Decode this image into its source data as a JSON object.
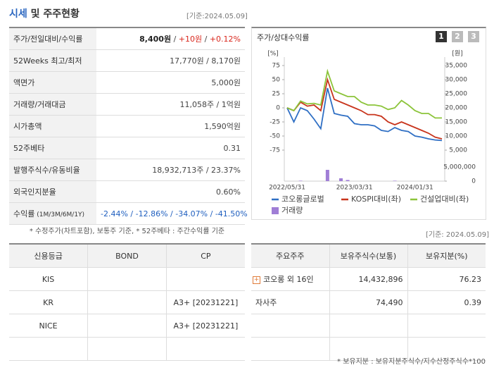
{
  "header": {
    "title": [
      "시세",
      " 및 주주현황"
    ],
    "date": "[기준:2024.05.09]"
  },
  "summary": {
    "rows": [
      {
        "label": [
          "주가/전일대비/수익률"
        ],
        "value": [
          {
            "text": "8,400원",
            "color": "#222",
            "bold": true
          },
          " / ",
          {
            "text": "+10원",
            "color": "#d9261c"
          },
          " / ",
          {
            "text": "+0.12%",
            "color": "#d9261c"
          }
        ]
      },
      {
        "label": [
          "52Weeks 최고/최저"
        ],
        "value": [
          "17,770원 / 8,170원"
        ]
      },
      {
        "label": [
          "액면가"
        ],
        "value": [
          "5,000원"
        ]
      },
      {
        "label": [
          "거래량/거래대금"
        ],
        "value": [
          "11,058주 / 1억원"
        ]
      },
      {
        "label": [
          "시가총액"
        ],
        "value": [
          "1,590억원"
        ]
      },
      {
        "label": [
          "52주베타"
        ],
        "value": [
          "0.31"
        ]
      },
      {
        "label": [
          "발행주식수/유동비율"
        ],
        "value": [
          "18,932,713주 / 23.37%"
        ]
      },
      {
        "label": [
          "외국인지분율"
        ],
        "value": [
          "0.60%"
        ]
      },
      {
        "label": [
          "수익률",
          " (1M/3M/6M/1Y)"
        ],
        "value": [
          {
            "text": "-2.44% / -12.86% / -34.07% / -41.50%",
            "color": "#1f5fbf"
          }
        ]
      }
    ]
  },
  "note": "* 수정주가(차트포함), 보통주 기준, * 52주베타 : 주간수익률 기준",
  "chart_panel": {
    "title": "주가/상대수익률",
    "tabs": [
      "1",
      "2",
      "3"
    ],
    "chart": {
      "type": "line",
      "y_unit": "[%]",
      "y2_unit": "[원]",
      "categories": [
        "2022/05/31",
        null,
        null,
        null,
        null,
        null,
        null,
        null,
        null,
        null,
        "2023/03/31",
        null,
        null,
        null,
        null,
        null,
        null,
        null,
        null,
        "2024/01/31",
        null,
        null,
        null,
        null
      ],
      "series": [
        {
          "name": "코오롱글로벌",
          "color": "#2f6fc4",
          "values": [
            0,
            -25,
            0,
            -5,
            -20,
            -37,
            35,
            -10,
            -13,
            -15,
            -28,
            -30,
            -30,
            -32,
            -40,
            -42,
            -35,
            -40,
            -42,
            -50,
            -52,
            -55,
            -57,
            -58
          ]
        },
        {
          "name": "KOSPI대비(좌)",
          "color": "#c8341c",
          "values": [
            0,
            -5,
            10,
            3,
            5,
            -5,
            50,
            15,
            10,
            5,
            0,
            -5,
            -12,
            -12,
            -15,
            -25,
            -30,
            -25,
            -30,
            -35,
            -40,
            -45,
            -52,
            -55
          ]
        },
        {
          "name": "건설업대비(좌)",
          "color": "#8cc43a",
          "values": [
            0,
            -5,
            12,
            7,
            8,
            5,
            65,
            30,
            25,
            20,
            20,
            10,
            5,
            5,
            3,
            -3,
            0,
            13,
            5,
            -5,
            -10,
            -10,
            -18,
            -18
          ]
        }
      ],
      "volume": {
        "name": "거래량",
        "color": "#a07ed6",
        "values": [
          0,
          0,
          150000,
          0,
          0,
          0,
          4000000,
          0,
          1000000,
          400000,
          0,
          0,
          0,
          0,
          0,
          0,
          150000,
          0,
          0,
          0,
          0,
          0,
          0,
          0
        ]
      },
      "ylim": [
        -87.5,
        85
      ],
      "yticks": [
        75,
        50,
        25,
        0,
        -25,
        -50,
        -75
      ],
      "y2lim": [
        2500,
        37000
      ],
      "y2ticks": [
        {
          "value": 35000,
          "label": "35,000"
        },
        {
          "value": 30000,
          "label": "30,000"
        },
        {
          "value": 25000,
          "label": "25,000"
        },
        {
          "value": 20000,
          "label": "20,000"
        },
        {
          "value": 15000,
          "label": "15,000"
        },
        {
          "value": 10000,
          "label": "10,000"
        },
        {
          "value": 5000,
          "label": "5,000"
        }
      ],
      "y3lim": [
        0,
        6750000
      ],
      "y3ticks": [
        {
          "value": 5000000,
          "label": "5,000,000"
        },
        0
      ]
    }
  },
  "date2": "[기준: 2024.05.09]",
  "credit": {
    "columns": [
      "신용등급",
      "BOND",
      "CP"
    ],
    "rows": [
      [
        "KIS",
        null,
        null
      ],
      [
        "KR",
        null,
        "A3+ [20231221]"
      ],
      [
        "NICE",
        null,
        "A3+ [20231221]"
      ]
    ]
  },
  "holders": {
    "columns": [
      "주요주주",
      "보유주식수(보통)",
      "보유지분(%)"
    ],
    "rows": [
      [
        "코오롱 외 16인",
        "14,432,896",
        "76.23"
      ],
      [
        "자사주",
        "74,490",
        "0.39"
      ]
    ]
  },
  "footnote": "* 보유지분 : 보유지분주식수/지수산정주식수*100"
}
